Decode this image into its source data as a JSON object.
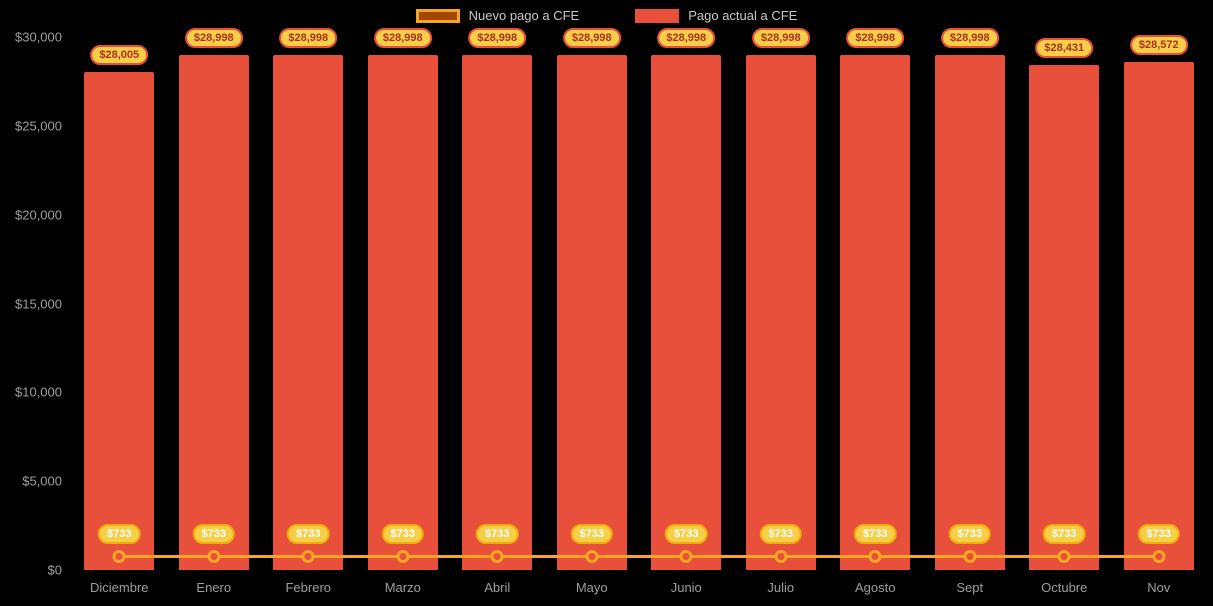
{
  "chart_data": {
    "type": "bar",
    "title": "",
    "categories": [
      "Diciembre",
      "Enero",
      "Febrero",
      "Marzo",
      "Abril",
      "Mayo",
      "Junio",
      "Julio",
      "Agosto",
      "Sept",
      "Octubre",
      "Nov"
    ],
    "series": [
      {
        "name": "Nuevo pago a CFE",
        "type": "line",
        "color": "#F5A623",
        "values": [
          733,
          733,
          733,
          733,
          733,
          733,
          733,
          733,
          733,
          733,
          733,
          733
        ],
        "point_labels": [
          "$733",
          "$733",
          "$733",
          "$733",
          "$733",
          "$733",
          "$733",
          "$733",
          "$733",
          "$733",
          "$733",
          "$733"
        ]
      },
      {
        "name": "Pago actual a CFE",
        "type": "bar",
        "color": "#E8503C",
        "values": [
          28005,
          28998,
          28998,
          28998,
          28998,
          28998,
          28998,
          28998,
          28998,
          28998,
          28431,
          28572
        ],
        "point_labels": [
          "$28,005",
          "$28,998",
          "$28,998",
          "$28,998",
          "$28,998",
          "$28,998",
          "$28,998",
          "$28,998",
          "$28,998",
          "$28,998",
          "$28,431",
          "$28,572"
        ]
      }
    ],
    "xlabel": "",
    "ylabel": "",
    "ylim": [
      0,
      30000
    ],
    "yticks": [
      0,
      5000,
      10000,
      15000,
      20000,
      25000,
      30000
    ],
    "ytick_labels": [
      "$0",
      "$5,000",
      "$10,000",
      "$15,000",
      "$20,000",
      "$25,000",
      "$30,000"
    ],
    "legend_position": "top",
    "grid": false
  },
  "colors": {
    "background": "#000000",
    "bar": "#E8503C",
    "line": "#F5A623",
    "line_legend_fill": "#A34700",
    "marker_fill": "#E8503C",
    "badge_bg": "#F6CE47",
    "badge_border": "#E8503C",
    "badge_text": "#A93226",
    "line_badge_border": "#EDAE0B",
    "line_badge_text": "#FFFFFF",
    "axis_text": "#9E9E9E",
    "legend_text": "#C9C9C9"
  }
}
